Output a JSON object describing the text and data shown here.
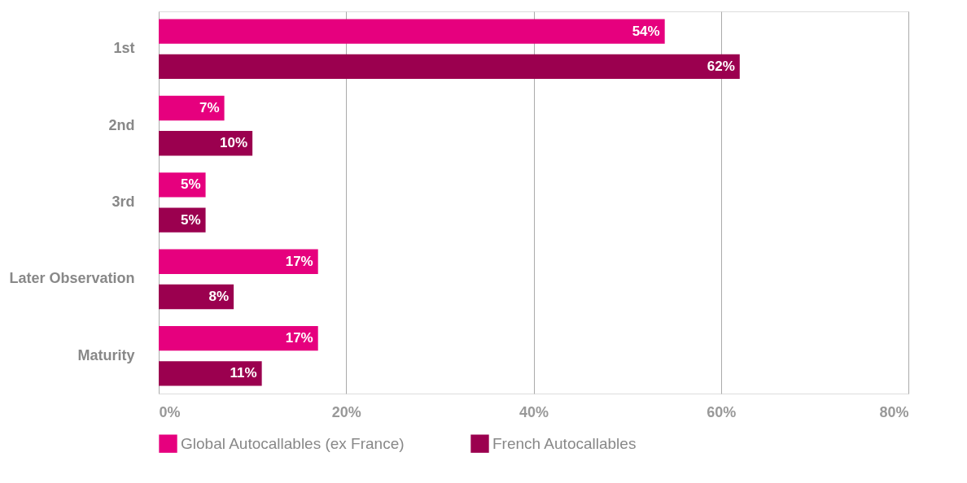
{
  "chart_data": {
    "type": "bar",
    "orientation": "horizontal",
    "categories": [
      "1st",
      "2nd",
      "3rd",
      "Later Observation",
      "Maturity"
    ],
    "series": [
      {
        "name": "Global Autocallables (ex France)",
        "color": "#e6007e",
        "values": [
          54,
          7,
          5,
          17,
          17
        ],
        "value_labels": [
          "54%",
          "7%",
          "5%",
          "17%",
          "17%"
        ]
      },
      {
        "name": "French Autocallables",
        "color": "#9b004f",
        "values": [
          62,
          10,
          5,
          8,
          11
        ],
        "value_labels": [
          "62%",
          "10%",
          "5%",
          "8%",
          "11%"
        ]
      }
    ],
    "xlim": [
      0,
      80
    ],
    "xticks": [
      {
        "value": 0,
        "label": "0%"
      },
      {
        "value": 20,
        "label": "20%"
      },
      {
        "value": 40,
        "label": "40%"
      },
      {
        "value": 60,
        "label": "60%"
      },
      {
        "value": 80,
        "label": "80%"
      }
    ],
    "grid": "x",
    "legend": "bottom"
  }
}
